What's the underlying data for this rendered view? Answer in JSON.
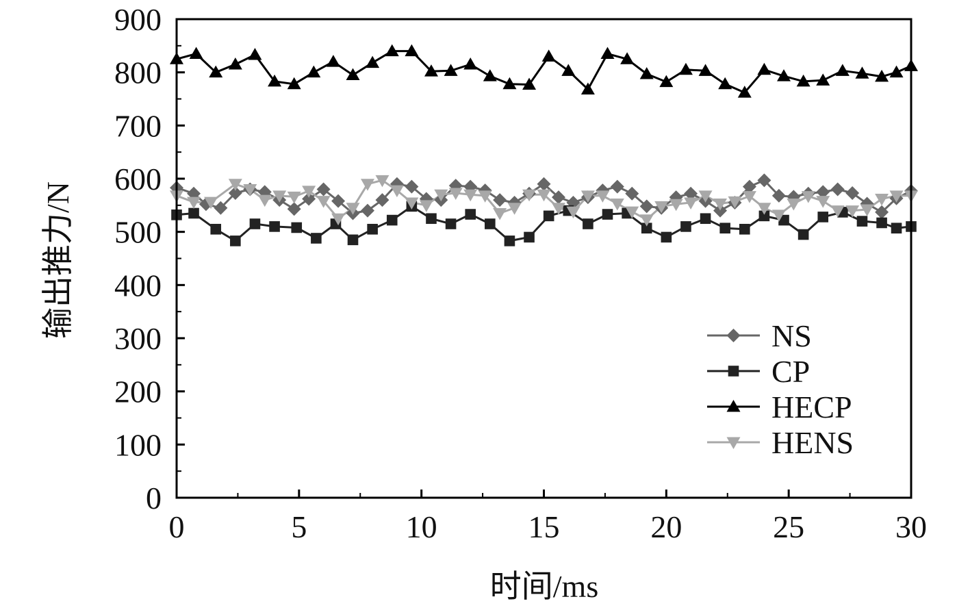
{
  "chart_data": {
    "type": "line",
    "xlabel": "时间/ms",
    "ylabel": "输出推力/N",
    "xlim": [
      0,
      30
    ],
    "ylim": [
      0,
      900
    ],
    "xticks": [
      "0",
      "5",
      "10",
      "15",
      "20",
      "25",
      "30"
    ],
    "yticks": [
      "0",
      "100",
      "200",
      "300",
      "400",
      "500",
      "600",
      "700",
      "800",
      "900"
    ],
    "grid": false,
    "legend_position": "bottom-right",
    "colors": {
      "NS": "#666666",
      "CP": "#222222",
      "HECP": "#000000",
      "HENS": "#a8a8a8"
    },
    "series": [
      {
        "name": "NS",
        "marker": "diamond",
        "x": [
          0,
          0.7,
          1.2,
          1.8,
          2.4,
          3.0,
          3.6,
          4.2,
          4.8,
          5.4,
          6.0,
          6.6,
          7.2,
          7.8,
          8.4,
          9.0,
          9.6,
          10.2,
          10.8,
          11.4,
          12.0,
          12.6,
          13.2,
          13.8,
          14.4,
          15.0,
          15.6,
          16.2,
          16.8,
          17.4,
          18.0,
          18.6,
          19.2,
          19.8,
          20.4,
          21.0,
          21.6,
          22.2,
          22.8,
          23.4,
          24.0,
          24.6,
          25.2,
          25.8,
          26.4,
          27.0,
          27.6,
          28.2,
          28.8,
          29.4,
          30.0
        ],
        "values": [
          583,
          572,
          552,
          545,
          573,
          580,
          575,
          560,
          543,
          562,
          580,
          558,
          535,
          540,
          560,
          590,
          585,
          562,
          560,
          587,
          585,
          578,
          560,
          555,
          572,
          590,
          565,
          555,
          565,
          578,
          585,
          572,
          548,
          545,
          565,
          572,
          558,
          540,
          555,
          585,
          597,
          568,
          566,
          572,
          575,
          580,
          573,
          553,
          537,
          563,
          577
        ]
      },
      {
        "name": "CP",
        "marker": "square",
        "x": [
          0,
          0.7,
          1.6,
          2.4,
          3.2,
          4.0,
          4.9,
          5.7,
          6.5,
          7.2,
          8.0,
          8.8,
          9.6,
          10.4,
          11.2,
          12.0,
          12.8,
          13.6,
          14.4,
          15.2,
          16.0,
          16.8,
          17.6,
          18.4,
          19.2,
          20.0,
          20.8,
          21.6,
          22.4,
          23.2,
          24.0,
          24.8,
          25.6,
          26.4,
          27.2,
          28.0,
          28.8,
          29.4,
          30.0
        ],
        "values": [
          532,
          535,
          505,
          483,
          515,
          510,
          508,
          488,
          515,
          485,
          505,
          522,
          548,
          525,
          515,
          533,
          515,
          483,
          490,
          530,
          540,
          515,
          533,
          535,
          507,
          490,
          510,
          525,
          507,
          505,
          530,
          522,
          495,
          528,
          537,
          520,
          517,
          507,
          510
        ]
      },
      {
        "name": "HECP",
        "marker": "triangle-up",
        "x": [
          0,
          0.8,
          1.6,
          2.4,
          3.2,
          4.0,
          4.8,
          5.6,
          6.4,
          7.2,
          8.0,
          8.8,
          9.6,
          10.4,
          11.2,
          12.0,
          12.8,
          13.6,
          14.4,
          15.2,
          16.0,
          16.8,
          17.6,
          18.4,
          19.2,
          20.0,
          20.8,
          21.6,
          22.4,
          23.2,
          24.0,
          24.8,
          25.6,
          26.4,
          27.2,
          28.0,
          28.8,
          29.4,
          30.0
        ],
        "values": [
          825,
          835,
          800,
          815,
          833,
          783,
          778,
          800,
          820,
          795,
          818,
          840,
          840,
          802,
          803,
          815,
          793,
          778,
          777,
          830,
          803,
          768,
          835,
          825,
          797,
          782,
          805,
          803,
          778,
          762,
          805,
          793,
          783,
          785,
          803,
          798,
          792,
          800,
          812
        ]
      },
      {
        "name": "HENS",
        "marker": "triangle-down",
        "x": [
          0,
          0.7,
          1.4,
          2.4,
          3.0,
          3.6,
          4.2,
          4.8,
          5.4,
          6.0,
          6.6,
          7.2,
          7.8,
          8.4,
          9.0,
          9.6,
          10.2,
          10.8,
          11.4,
          12.0,
          12.6,
          13.2,
          13.8,
          14.4,
          15.0,
          15.6,
          16.2,
          16.8,
          17.4,
          18.0,
          18.6,
          19.2,
          19.8,
          20.4,
          21.0,
          21.6,
          22.2,
          22.8,
          23.4,
          24.0,
          24.6,
          25.2,
          25.8,
          26.4,
          27.0,
          27.6,
          28.2,
          28.8,
          29.4,
          30.0
        ],
        "values": [
          568,
          556,
          556,
          590,
          580,
          560,
          568,
          566,
          577,
          558,
          525,
          545,
          590,
          597,
          578,
          555,
          550,
          570,
          573,
          570,
          568,
          535,
          545,
          570,
          570,
          545,
          538,
          568,
          568,
          553,
          538,
          523,
          548,
          552,
          555,
          568,
          553,
          557,
          567,
          545,
          532,
          553,
          567,
          558,
          540,
          540,
          542,
          562,
          568,
          568
        ]
      }
    ]
  }
}
